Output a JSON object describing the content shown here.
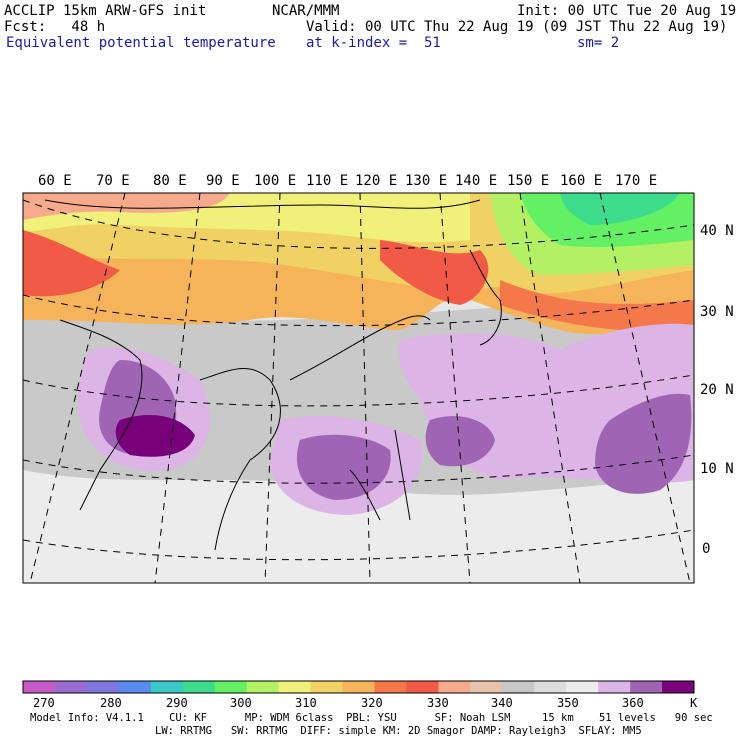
{
  "header": {
    "model": "ACCLIP 15km ARW-GFS init",
    "org": "NCAR/MMM",
    "init": "Init: 00 UTC Tue 20 Aug 19",
    "fcst": "Fcst:   48 h",
    "valid": "Valid: 00 UTC Thu 22 Aug 19 (09 JST Thu 22 Aug 19)",
    "field": "Equivalent potential temperature",
    "level": "at k-index =  51",
    "smooth": "sm= 2"
  },
  "map": {
    "lon_labels": [
      "60 E",
      "70 E",
      "80 E",
      "90 E",
      "100 E",
      "110 E",
      "120 E",
      "130 E",
      "140 E",
      "150 E",
      "160 E",
      "170 E"
    ],
    "lat_labels": [
      "40 N",
      "30 N",
      "20 N",
      "10 N",
      "0"
    ]
  },
  "colorbar": {
    "colors": [
      "#c85ac8",
      "#9b6bd2",
      "#7e78e0",
      "#5a8cf0",
      "#3cc8c8",
      "#3cdc8c",
      "#64f064",
      "#b4f064",
      "#f0f07a",
      "#f0d264",
      "#f5b45a",
      "#f5784b",
      "#f05a46",
      "#f5aa8c",
      "#e6c3aa",
      "#c8c8c8",
      "#dcdcdc",
      "#ececec",
      "#dcb4e6",
      "#a064b4",
      "#780078"
    ],
    "labels": [
      "270",
      "280",
      "290",
      "300",
      "310",
      "320",
      "330",
      "340",
      "350",
      "360",
      "K"
    ]
  },
  "footer": {
    "line1": "Model Info: V4.1.1    CU: KF      MP: WDM 6class  PBL: YSU      SF: Noah LSM     15 km    51 levels   90 sec",
    "line2": "LW: RRTMG   SW: RRTMG  DIFF: simple KM: 2D Smagor DAMP: Rayleigh3  SFLAY: MM5"
  }
}
